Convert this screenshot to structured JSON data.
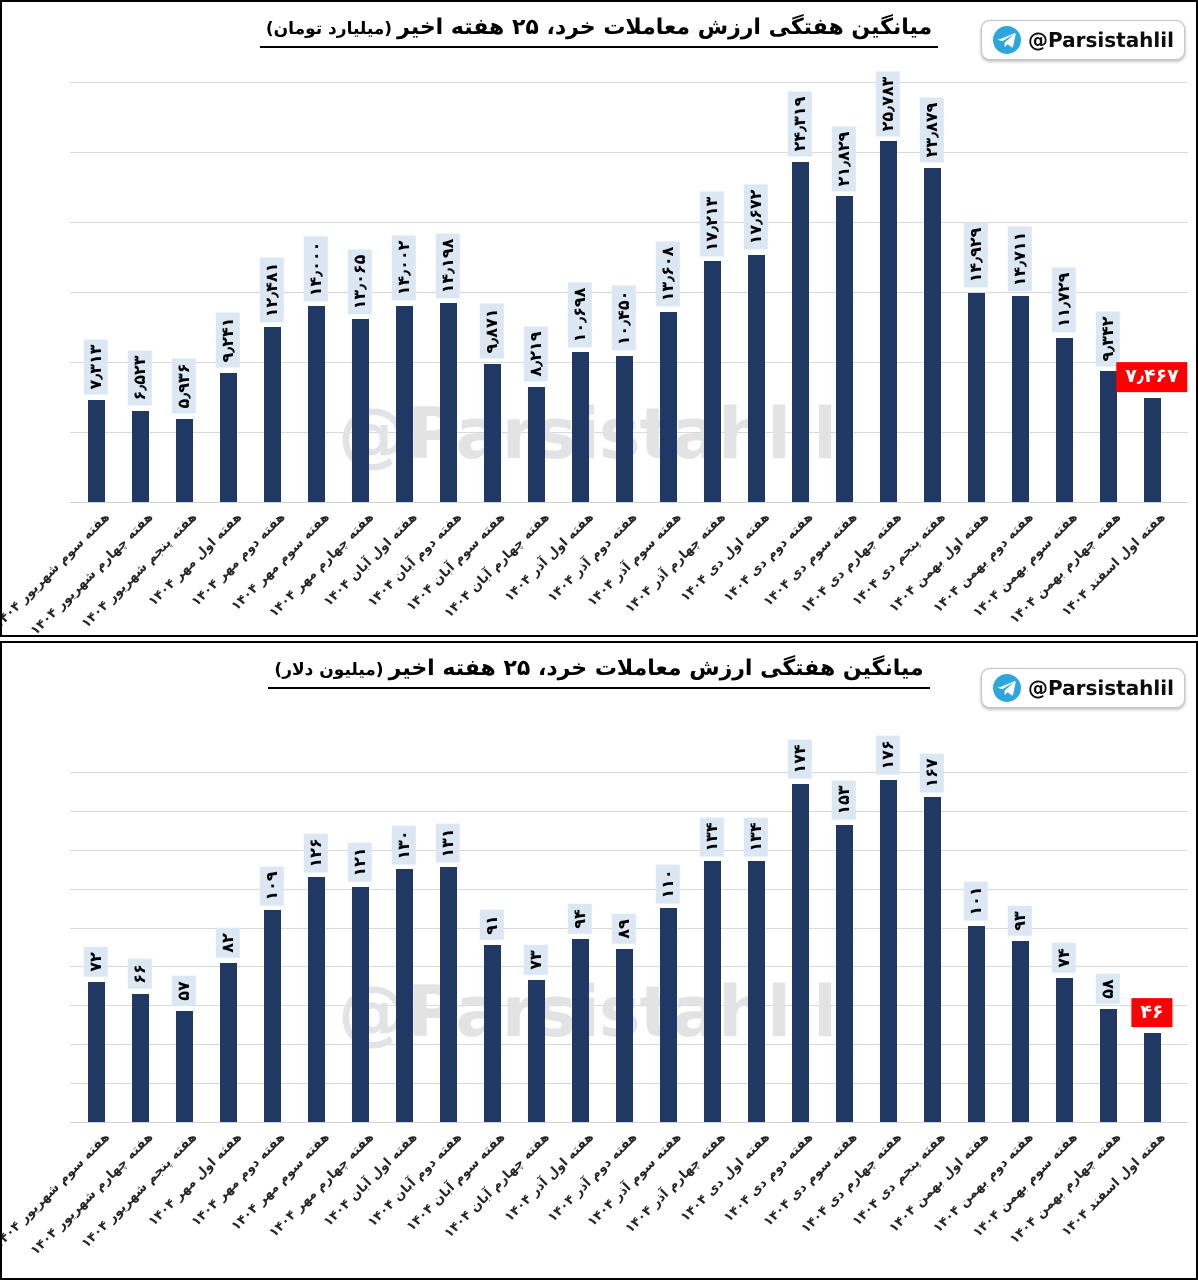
{
  "page": {
    "badge_label": "@Parsistahlil",
    "watermark": "@Parsistahlil",
    "colors": {
      "bar": "#1f3864",
      "value_label_bg": "#dbe7f3",
      "highlight_bg": "#ff0000",
      "highlight_text": "#ffffff",
      "gridline": "#d9d9d9",
      "telegram_blue": "#2ea6dd",
      "watermark_gray": "#e3e3e3"
    }
  },
  "chart_data": [
    {
      "type": "bar",
      "title": "میانگین هفتگی ارزش معاملات خرد، ۲۵ هفته اخیر",
      "unit_label": "(میلیارد تومان)",
      "grid": true,
      "legend": "none",
      "ylim": [
        0,
        30000
      ],
      "gridline_step": 5000,
      "categories": [
        "هفته سوم شهریور ۱۴۰۴",
        "هفته چهارم شهریور ۱۴۰۴",
        "هفته پنجم شهریور ۱۴۰۴",
        "هفته اول مهر ۱۴۰۴",
        "هفته دوم مهر ۱۴۰۴",
        "هفته سوم مهر ۱۴۰۴",
        "هفته چهارم مهر ۱۴۰۴",
        "هفته اول آبان ۱۴۰۴",
        "هفته دوم آبان ۱۴۰۴",
        "هفته سوم آبان ۱۴۰۴",
        "هفته چهارم آبان ۱۴۰۴",
        "هفته اول آذر ۱۴۰۴",
        "هفته دوم آذر ۱۴۰۴",
        "هفته سوم آذر ۱۴۰۴",
        "هفته چهارم آذر ۱۴۰۴",
        "هفته اول دی ۱۴۰۴",
        "هفته دوم دی ۱۴۰۴",
        "هفته سوم دی ۱۴۰۴",
        "هفته چهارم دی ۱۴۰۴",
        "هفته پنجم دی ۱۴۰۴",
        "هفته اول بهمن ۱۴۰۴",
        "هفته دوم بهمن ۱۴۰۴",
        "هفته سوم بهمن ۱۴۰۴",
        "هفته چهارم بهمن ۱۴۰۴",
        "هفته اول اسفند ۱۴۰۴"
      ],
      "values": [
        7313,
        6523,
        5936,
        9241,
        12481,
        14000,
        13065,
        14002,
        14198,
        9871,
        8219,
        10698,
        10450,
        13608,
        17213,
        17672,
        24319,
        21829,
        25783,
        23879,
        14929,
        14711,
        11729,
        9342,
        7467
      ],
      "value_labels": [
        "۷٫۳۱۳",
        "۶٫۵۲۳",
        "۵٫۹۳۶",
        "۹٫۲۴۱",
        "۱۲٫۴۸۱",
        "۱۴٫۰۰۰",
        "۱۳٫۰۶۵",
        "۱۴٫۰۰۲",
        "۱۴٫۱۹۸",
        "۹٫۸۷۱",
        "۸٫۲۱۹",
        "۱۰٫۶۹۸",
        "۱۰٫۴۵۰",
        "۱۳٫۶۰۸",
        "۱۷٫۲۱۳",
        "۱۷٫۶۷۲",
        "۲۴٫۳۱۹",
        "۲۱٫۸۲۹",
        "۲۵٫۷۸۳",
        "۲۳٫۸۷۹",
        "۱۴٫۹۲۹",
        "۱۴٫۷۱۱",
        "۱۱٫۷۲۹",
        "۹٫۳۴۲",
        "۷٫۴۶۷"
      ],
      "highlight_last": true
    },
    {
      "type": "bar",
      "title": "میانگین هفتگی ارزش معاملات خرد، ۲۵ هفته اخیر",
      "unit_label": "(میلیون دلار)",
      "grid": true,
      "legend": "none",
      "ylim": [
        0,
        180
      ],
      "gridline_step": 20,
      "categories": [
        "هفته سوم شهریور ۱۴۰۴",
        "هفته چهارم شهریور ۱۴۰۴",
        "هفته پنجم شهریور ۱۴۰۴",
        "هفته اول مهر ۱۴۰۴",
        "هفته دوم مهر ۱۴۰۴",
        "هفته سوم مهر ۱۴۰۴",
        "هفته چهارم مهر ۱۴۰۴",
        "هفته اول آبان ۱۴۰۴",
        "هفته دوم آبان ۱۴۰۴",
        "هفته سوم آبان ۱۴۰۴",
        "هفته چهارم آبان ۱۴۰۴",
        "هفته اول آذر ۱۴۰۴",
        "هفته دوم آذر ۱۴۰۴",
        "هفته سوم آذر ۱۴۰۴",
        "هفته چهارم آذر ۱۴۰۴",
        "هفته اول دی ۱۴۰۴",
        "هفته دوم دی ۱۴۰۴",
        "هفته سوم دی ۱۴۰۴",
        "هفته چهارم دی ۱۴۰۴",
        "هفته پنجم دی ۱۴۰۴",
        "هفته اول بهمن ۱۴۰۴",
        "هفته دوم بهمن ۱۴۰۴",
        "هفته سوم بهمن ۱۴۰۴",
        "هفته چهارم بهمن ۱۴۰۴",
        "هفته اول اسفند ۱۴۰۴"
      ],
      "values": [
        72,
        66,
        57,
        82,
        109,
        126,
        121,
        130,
        131,
        91,
        73,
        94,
        89,
        110,
        134,
        134,
        174,
        153,
        176,
        167,
        101,
        93,
        74,
        58,
        46
      ],
      "value_labels": [
        "۷۲",
        "۶۶",
        "۵۷",
        "۸۲",
        "۱۰۹",
        "۱۲۶",
        "۱۲۱",
        "۱۳۰",
        "۱۳۱",
        "۹۱",
        "۷۳",
        "۹۴",
        "۸۹",
        "۱۱۰",
        "۱۳۴",
        "۱۳۴",
        "۱۷۴",
        "۱۵۳",
        "۱۷۶",
        "۱۶۷",
        "۱۰۱",
        "۹۳",
        "۷۴",
        "۵۸",
        "۴۶"
      ],
      "highlight_last": true
    }
  ]
}
